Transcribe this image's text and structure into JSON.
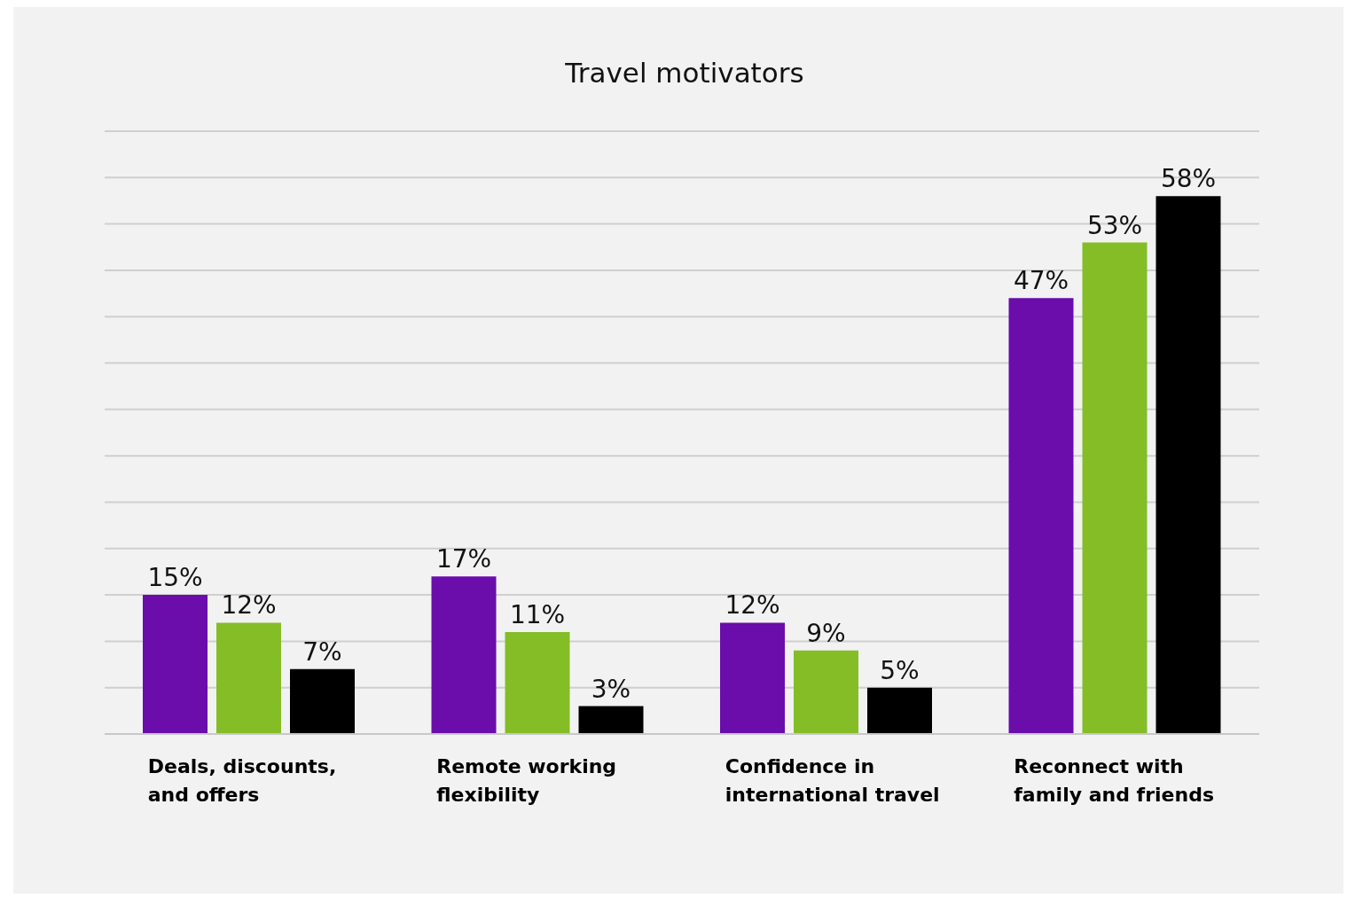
{
  "chart_data": {
    "type": "bar",
    "title": "Travel motivators",
    "categories": [
      "Deals, discounts, and offers",
      "Remote working flexibility",
      "Confidence in international travel",
      "Reconnect with family and friends"
    ],
    "series": [
      {
        "color": "#6a0dab",
        "values": [
          15,
          17,
          12,
          47
        ],
        "value_labels": [
          "15%",
          "17%",
          "12%",
          "47%"
        ]
      },
      {
        "color": "#84bd26",
        "values": [
          12,
          11,
          9,
          53
        ],
        "value_labels": [
          "12%",
          "11%",
          "9%",
          "53%"
        ]
      },
      {
        "color": "#000000",
        "values": [
          7,
          3,
          5,
          58
        ],
        "value_labels": [
          "7%",
          "3%",
          "5%",
          "58%"
        ]
      }
    ],
    "ylim": [
      0,
      65
    ],
    "yticks": [
      {
        "value": 0,
        "label": null
      },
      {
        "value": 5,
        "label": null
      },
      {
        "value": 10,
        "label": null
      },
      {
        "value": 15,
        "label": null
      },
      {
        "value": 20,
        "label": null
      },
      {
        "value": 25,
        "label": null
      },
      {
        "value": 30,
        "label": null
      },
      {
        "value": 35,
        "label": null
      },
      {
        "value": 40,
        "label": null
      },
      {
        "value": 45,
        "label": null
      },
      {
        "value": 50,
        "label": null
      },
      {
        "value": 55,
        "label": null
      },
      {
        "value": 60,
        "label": null
      },
      {
        "value": 65,
        "label": null
      }
    ],
    "grid": "y",
    "legend": false,
    "tick_labels": "x"
  }
}
